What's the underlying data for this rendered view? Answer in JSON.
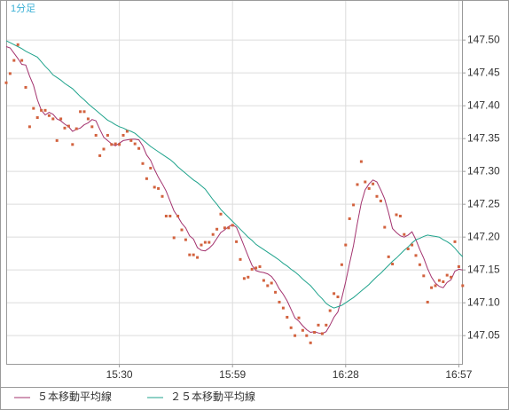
{
  "chart_data": {
    "type": "line",
    "title": "1分足",
    "title_color": "#3ab0d6",
    "categories": [
      null,
      null,
      null,
      null,
      null,
      null,
      null,
      null,
      null,
      null,
      null,
      null,
      null,
      null,
      null,
      null,
      null,
      null,
      null,
      null,
      null,
      null,
      null,
      null,
      null,
      null,
      null,
      null,
      null,
      "15:30",
      null,
      null,
      null,
      null,
      null,
      null,
      null,
      null,
      null,
      null,
      null,
      null,
      null,
      null,
      null,
      null,
      null,
      null,
      null,
      null,
      null,
      null,
      null,
      null,
      null,
      null,
      null,
      null,
      "15:59",
      null,
      null,
      null,
      null,
      null,
      null,
      null,
      null,
      null,
      null,
      null,
      null,
      null,
      null,
      null,
      null,
      null,
      null,
      null,
      null,
      null,
      null,
      null,
      null,
      null,
      null,
      null,
      null,
      "16:28",
      null,
      null,
      null,
      null,
      null,
      null,
      null,
      null,
      null,
      null,
      null,
      null,
      null,
      null,
      null,
      null,
      null,
      null,
      null,
      null,
      null,
      null,
      null,
      null,
      null,
      null,
      null,
      null,
      "16:57",
      null
    ],
    "values": [
      147.435,
      147.449,
      147.469,
      147.493,
      147.469,
      147.428,
      147.368,
      147.396,
      147.382,
      147.393,
      147.393,
      147.385,
      147.38,
      147.347,
      147.38,
      147.366,
      147.369,
      147.341,
      147.365,
      147.391,
      147.391,
      147.38,
      147.368,
      147.355,
      147.324,
      147.334,
      147.355,
      147.341,
      147.342,
      147.341,
      147.355,
      147.361,
      147.347,
      147.342,
      147.335,
      147.312,
      147.289,
      147.305,
      147.276,
      147.274,
      147.262,
      147.232,
      147.232,
      147.199,
      147.232,
      147.211,
      147.196,
      147.173,
      147.173,
      147.169,
      147.188,
      147.192,
      147.192,
      147.204,
      147.212,
      147.235,
      147.214,
      147.214,
      147.218,
      147.193,
      147.166,
      147.137,
      147.139,
      147.151,
      147.153,
      147.155,
      147.134,
      147.126,
      147.13,
      147.116,
      147.101,
      147.092,
      147.078,
      147.062,
      147.05,
      147.077,
      147.058,
      147.05,
      147.039,
      147.055,
      147.066,
      147.053,
      147.066,
      147.088,
      147.114,
      147.109,
      147.158,
      147.188,
      147.228,
      147.249,
      147.28,
      147.315,
      147.284,
      147.274,
      147.281,
      147.262,
      147.255,
      147.215,
      147.17,
      147.159,
      147.234,
      147.232,
      147.204,
      147.182,
      147.188,
      147.172,
      147.158,
      147.141,
      147.101,
      147.123,
      147.126,
      147.134,
      147.132,
      147.142,
      147.139,
      147.193,
      147.155,
      147.126
    ],
    "color": "#d2623e",
    "series": [
      {
        "name": "５本移動平均線",
        "color": "#a3326e",
        "values": [
          147.49,
          147.488,
          147.48,
          147.472,
          147.463,
          147.462,
          147.445,
          147.431,
          147.409,
          147.393,
          147.386,
          147.39,
          147.387,
          147.38,
          147.377,
          147.372,
          147.368,
          147.361,
          147.364,
          147.366,
          147.371,
          147.374,
          147.379,
          147.377,
          147.364,
          147.352,
          147.347,
          147.342,
          147.339,
          147.343,
          147.347,
          147.348,
          147.349,
          147.349,
          147.348,
          147.339,
          147.325,
          147.317,
          147.303,
          147.291,
          147.281,
          147.27,
          147.255,
          147.24,
          147.231,
          147.221,
          147.214,
          147.202,
          147.197,
          147.184,
          147.18,
          147.179,
          147.183,
          147.189,
          147.198,
          147.207,
          147.211,
          147.216,
          147.219,
          147.215,
          147.201,
          147.186,
          147.171,
          147.157,
          147.149,
          147.147,
          147.146,
          147.144,
          147.14,
          147.132,
          147.121,
          147.113,
          147.103,
          147.09,
          147.077,
          147.072,
          147.065,
          147.059,
          147.055,
          147.056,
          147.054,
          147.053,
          147.056,
          147.066,
          147.078,
          147.086,
          147.107,
          147.132,
          147.16,
          147.187,
          147.221,
          147.252,
          147.272,
          147.281,
          147.287,
          147.284,
          147.272,
          147.258,
          147.237,
          147.213,
          147.207,
          147.202,
          147.2,
          147.203,
          147.208,
          147.196,
          147.181,
          147.168,
          147.152,
          147.139,
          147.13,
          147.125,
          147.123,
          147.131,
          147.135,
          147.148,
          147.151,
          147.15
        ]
      },
      {
        "name": "２５本移動平均線",
        "color": "#1fa38c",
        "values": [
          147.499,
          147.496,
          147.493,
          147.49,
          147.487,
          147.483,
          147.48,
          147.477,
          147.474,
          147.467,
          147.46,
          147.454,
          147.447,
          147.443,
          147.439,
          147.434,
          147.43,
          147.426,
          147.42,
          147.414,
          147.409,
          147.403,
          147.398,
          147.393,
          147.388,
          147.383,
          147.378,
          147.375,
          147.371,
          147.368,
          147.366,
          147.363,
          147.361,
          147.358,
          147.353,
          147.348,
          147.343,
          147.338,
          147.334,
          147.33,
          147.326,
          147.322,
          147.318,
          147.313,
          147.307,
          147.302,
          147.297,
          147.292,
          147.287,
          147.283,
          147.278,
          147.273,
          147.265,
          147.257,
          147.25,
          147.242,
          147.236,
          147.23,
          147.224,
          147.218,
          147.212,
          147.206,
          147.2,
          147.195,
          147.189,
          147.185,
          147.181,
          147.177,
          147.173,
          147.169,
          147.165,
          147.16,
          147.156,
          147.151,
          147.147,
          147.142,
          147.136,
          147.131,
          147.126,
          147.119,
          147.112,
          147.106,
          147.099,
          147.095,
          147.092,
          147.094,
          147.096,
          147.1,
          147.104,
          147.108,
          147.113,
          147.118,
          147.123,
          147.128,
          147.134,
          147.14,
          147.145,
          147.151,
          147.157,
          147.163,
          147.168,
          147.174,
          147.18,
          147.185,
          147.191,
          147.196,
          147.198,
          147.201,
          147.203,
          147.202,
          147.201,
          147.2,
          147.196,
          147.193,
          147.189,
          147.183,
          147.176,
          147.17
        ]
      }
    ],
    "ylim": [
      147.007,
      147.561
    ],
    "yticks": [
      147.05,
      {
        "value": 147.1,
        "label": "147.10"
      },
      147.15,
      {
        "value": 147.2,
        "label": "147.20"
      },
      147.25,
      {
        "value": 147.3,
        "label": "147.30"
      },
      147.35,
      {
        "value": 147.4,
        "label": "147.40"
      },
      147.45,
      {
        "value": 147.5,
        "label": "147.50"
      }
    ],
    "grid": true
  }
}
